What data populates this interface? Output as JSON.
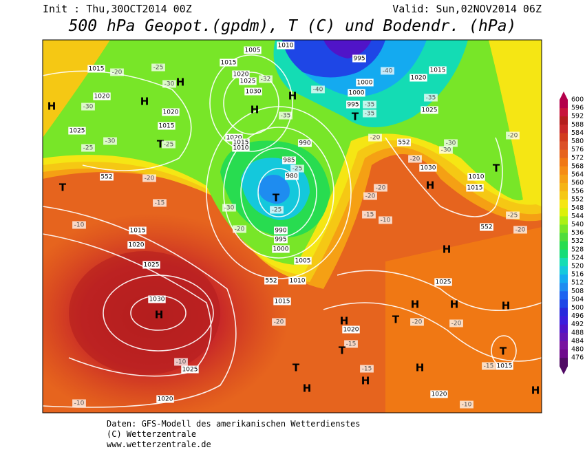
{
  "header": {
    "init": "Init : Thu,30OCT2014 00Z",
    "valid": "Valid: Sun,02NOV2014 06Z",
    "title": "500 hPa Geopot.(gpdm), T (C) und Bodendr. (hPa)"
  },
  "colorbar": {
    "ticks": [
      600,
      596,
      592,
      588,
      584,
      580,
      576,
      572,
      568,
      564,
      560,
      556,
      552,
      548,
      544,
      540,
      536,
      532,
      528,
      524,
      520,
      516,
      512,
      508,
      504,
      500,
      496,
      492,
      488,
      484,
      480,
      476
    ],
    "colors": [
      "#b4004b",
      "#c8143c",
      "#b41e1e",
      "#c82828",
      "#d23c1e",
      "#dc5028",
      "#e6641e",
      "#f07814",
      "#f58c14",
      "#f5a014",
      "#f5b414",
      "#f5c814",
      "#f5e614",
      "#dcf00a",
      "#aaf014",
      "#78e628",
      "#50dc3c",
      "#28dc50",
      "#14dc78",
      "#14dcb4",
      "#14c8dc",
      "#14aaf0",
      "#1e8cf0",
      "#1e64f0",
      "#1e46e6",
      "#2828dc",
      "#3c1edc",
      "#5014c8",
      "#6414b4",
      "#7814a0",
      "#6e0a8c",
      "#500a64"
    ]
  },
  "map": {
    "labels": [
      "H",
      "1015",
      "-20",
      "1020",
      "-30",
      "1025",
      "-25",
      "-30",
      "H",
      "-25",
      "-30",
      "H",
      "1020",
      "1015",
      "T",
      "-25",
      "1005",
      "1010",
      "1015",
      "1020",
      "1025",
      "-32",
      "1030",
      "H",
      "H",
      "-35",
      "1020",
      "1015",
      "1010",
      "-40",
      "995",
      "1000",
      "1000",
      "995",
      "-35",
      "-35",
      "T",
      "-40",
      "1020",
      "1015",
      "-35",
      "1025",
      "990",
      "985",
      "-25",
      "980",
      "T",
      "-25",
      "-30",
      "-20",
      "552",
      "T",
      "-15",
      "-10",
      "1015",
      "1020",
      "1025",
      "-20",
      "990",
      "995",
      "1000",
      "1005",
      "1010",
      "552",
      "1015",
      "1030",
      "H",
      "-10",
      "1025",
      "1020",
      "-10",
      "-20",
      "1020",
      "H",
      "-15",
      "T",
      "T",
      "H",
      "-15",
      "H",
      "H",
      "1020",
      "-10",
      "T",
      "-15",
      "1015",
      "H",
      "H",
      "H",
      "-20",
      "-20",
      "T",
      "H",
      "1025",
      "H",
      "-10",
      "-15",
      "552",
      "-20",
      "-25",
      "1015",
      "1010",
      "T",
      "-20",
      "H",
      "1030",
      "-20",
      "-30",
      "-30",
      "552",
      "-20",
      "-20",
      "-20"
    ]
  },
  "footer": {
    "line1": "Daten: GFS-Modell des amerikanischen Wetterdienstes",
    "line2": "(C) Wetterzentrale",
    "line3": "www.wetterzentrale.de"
  }
}
